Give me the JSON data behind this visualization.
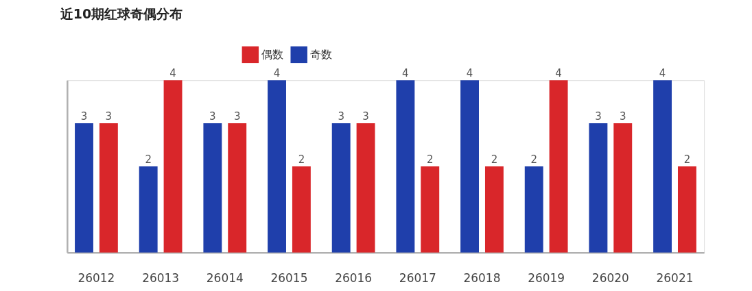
{
  "chart_data": {
    "type": "bar",
    "title": "近10期红球奇偶分布",
    "categories": [
      "26012",
      "26013",
      "26014",
      "26015",
      "26016",
      "26017",
      "26018",
      "26019",
      "26020",
      "26021"
    ],
    "series": [
      {
        "name": "偶数",
        "color": "#d9262a",
        "values": [
          3,
          4,
          3,
          2,
          3,
          2,
          2,
          4,
          3,
          2
        ]
      },
      {
        "name": "奇数",
        "color": "#1f3fab",
        "values": [
          3,
          2,
          3,
          4,
          3,
          4,
          4,
          2,
          3,
          4
        ]
      }
    ],
    "ylim": [
      0,
      4
    ],
    "tick_labels": "x",
    "data_labels": true,
    "legend": "top",
    "grid": false
  }
}
